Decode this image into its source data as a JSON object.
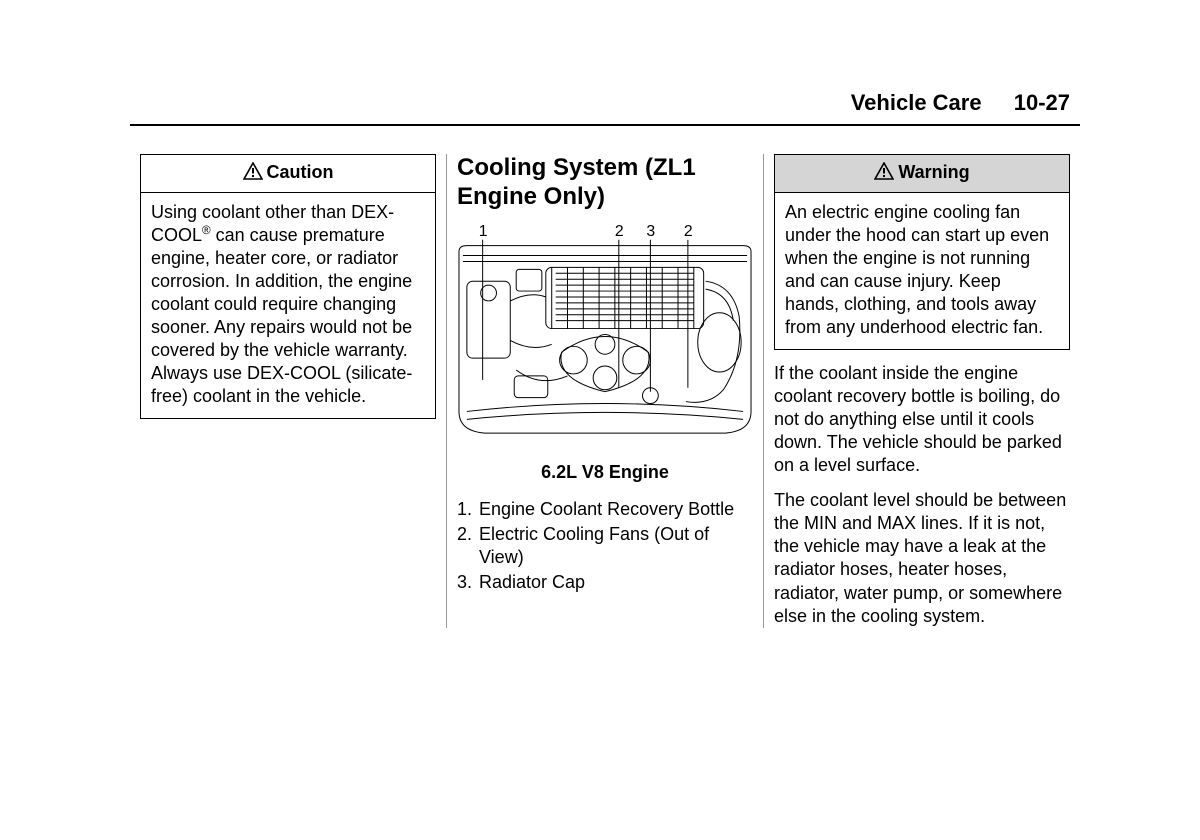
{
  "header": {
    "section": "Vehicle Care",
    "page": "10-27"
  },
  "col1": {
    "caution": {
      "title": "Caution",
      "body_html": "Using coolant other than DEX-COOL<sup>®</sup> can cause premature engine, heater core, or radiator corrosion. In addition, the engine coolant could require changing sooner. Any repairs would not be covered by the vehicle warranty. Always use DEX-COOL (silicate-free) coolant in the vehicle."
    }
  },
  "col2": {
    "heading": "Cooling System (ZL1 Engine Only)",
    "figure": {
      "callout_labels": [
        "1",
        "2",
        "3",
        "2"
      ],
      "caption": "6.2L V8 Engine"
    },
    "legend": [
      {
        "n": "1.",
        "text": "Engine Coolant Recovery Bottle"
      },
      {
        "n": "2.",
        "text": "Electric Cooling Fans (Out of View)"
      },
      {
        "n": "3.",
        "text": "Radiator Cap"
      }
    ]
  },
  "col3": {
    "warning": {
      "title": "Warning",
      "body": "An electric engine cooling fan under the hood can start up even when the engine is not running and can cause injury. Keep hands, clothing, and tools away from any underhood electric fan."
    },
    "p1": "If the coolant inside the engine coolant recovery bottle is boiling, do not do anything else until it cools down. The vehicle should be parked on a level surface.",
    "p2": "The coolant level should be between the MIN and MAX lines. If it is not, the vehicle may have a leak at the radiator hoses, heater hoses, radiator, water pump, or somewhere else in the cooling system."
  },
  "colors": {
    "text": "#000000",
    "bg": "#ffffff",
    "rule": "#000000",
    "col_divider": "#999999",
    "warning_title_bg": "#d5d5d5"
  }
}
